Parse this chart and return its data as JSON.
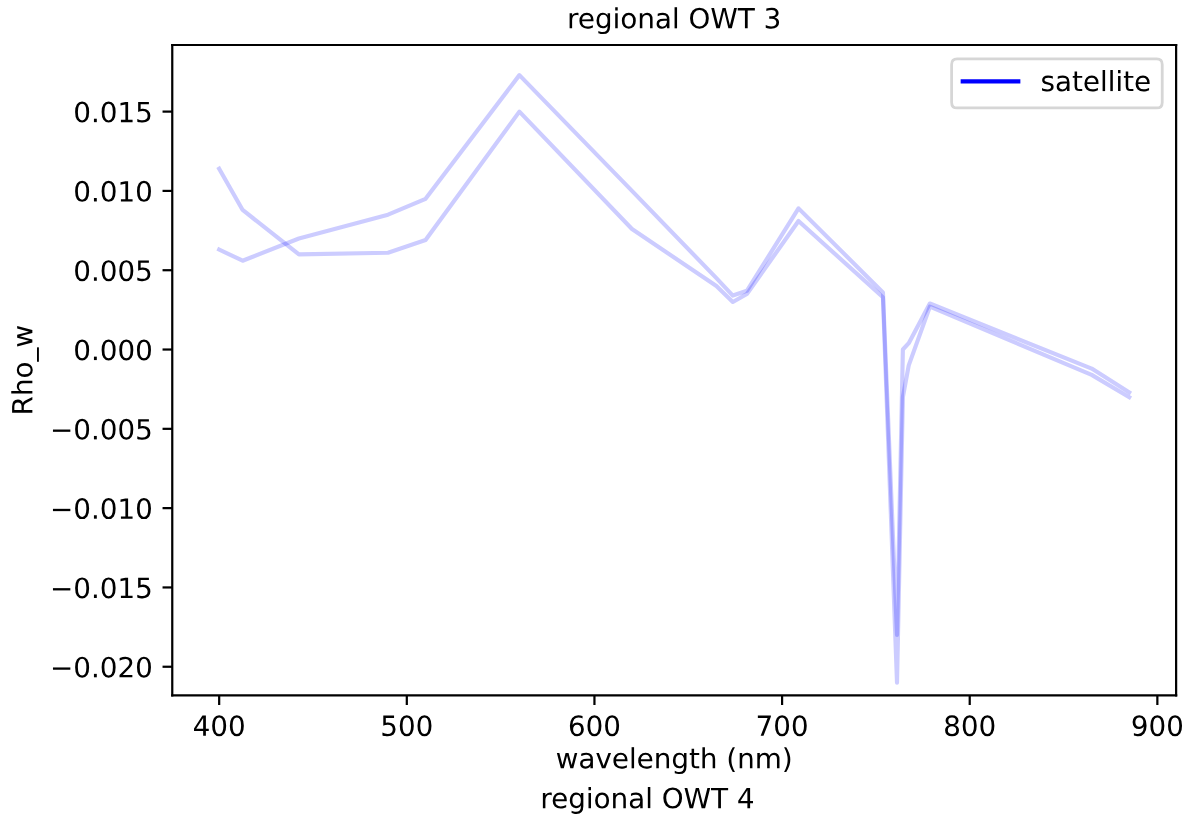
{
  "chart_data": {
    "type": "line",
    "title": "regional OWT 3",
    "xlabel": "wavelength (nm)",
    "ylabel": "Rho_w",
    "annotations": [
      "regional OWT 4"
    ],
    "xlim": [
      375,
      910
    ],
    "xticks": [
      400,
      500,
      600,
      700,
      800,
      900
    ],
    "ylim": [
      -0.0218,
      0.0192
    ],
    "yticks": [
      {
        "value": -0.02,
        "label": "−0.020"
      },
      {
        "value": -0.015,
        "label": "−0.015"
      },
      {
        "value": -0.01,
        "label": "−0.010"
      },
      {
        "value": -0.005,
        "label": "−0.005"
      },
      {
        "value": 0,
        "label": "0.000"
      },
      {
        "value": 0.005,
        "label": "0.005"
      },
      {
        "value": 0.01,
        "label": "0.010"
      },
      {
        "value": 0.015,
        "label": "0.015"
      }
    ],
    "x": [
      400,
      412.5,
      442.5,
      490,
      510,
      560,
      620,
      665,
      673.75,
      681.25,
      708.75,
      753.75,
      761.25,
      764.375,
      767.5,
      778.75,
      865,
      885
    ],
    "series": [
      {
        "name": "satellite",
        "color": "#0000ff",
        "values": [
          0.0114,
          0.0088,
          0.006,
          0.0061,
          0.0069,
          0.015,
          0.0076,
          0.004,
          0.003,
          0.0035,
          0.0081,
          0.0033,
          -0.021,
          -0.003,
          -0.001,
          0.0027,
          -0.0016,
          -0.003
        ]
      },
      {
        "color": "#0000ff",
        "values": [
          0.0063,
          0.0056,
          0.007,
          0.0085,
          0.0095,
          0.0173,
          0.01,
          0.0045,
          0.0034,
          0.0037,
          0.0089,
          0.0036,
          -0.018,
          0.0,
          0.0004,
          0.0029,
          -0.0012,
          -0.0027
        ]
      }
    ],
    "legend": "top right",
    "grid": false
  }
}
